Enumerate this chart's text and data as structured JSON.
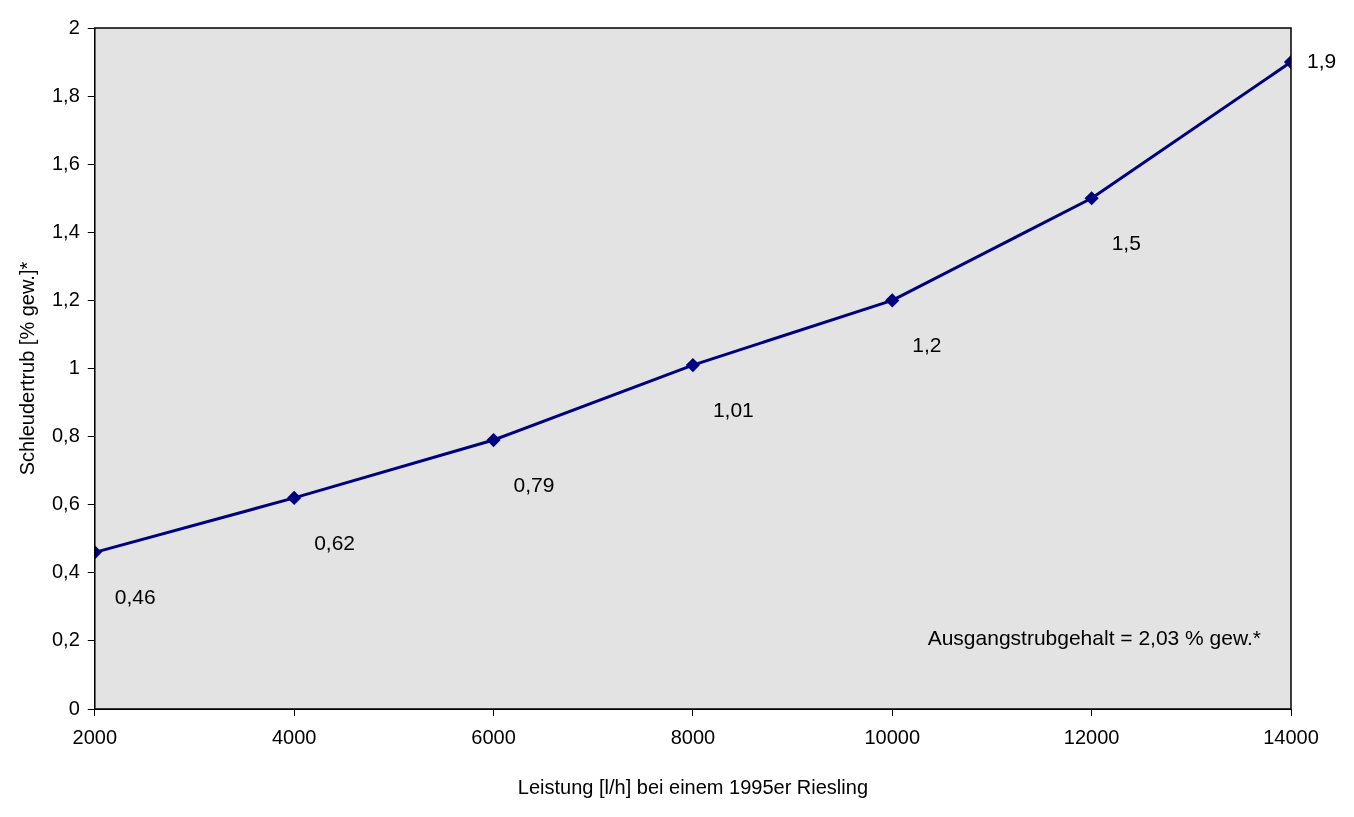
{
  "chart_data": {
    "type": "line",
    "xlabel": "Leistung [l/h] bei einem 1995er Riesling",
    "ylabel": "Schleudertrub [% gew.]*",
    "x": [
      2000,
      4000,
      6000,
      8000,
      10000,
      12000,
      14000
    ],
    "series": [
      {
        "color": "#000080",
        "values": [
          0.46,
          0.62,
          0.79,
          1.01,
          1.2,
          1.5,
          1.9
        ],
        "value_labels": [
          "0,46",
          "0,62",
          "0,79",
          "1,01",
          "1,2",
          "1,5",
          "1,9"
        ]
      }
    ],
    "xlim": [
      2000,
      14000
    ],
    "xticks": [
      2000,
      4000,
      6000,
      8000,
      10000,
      12000,
      14000
    ],
    "ylim": [
      0,
      2
    ],
    "yticks": [
      0,
      {
        "value": 0.2,
        "label": "0,2"
      },
      {
        "value": 0.4,
        "label": "0,4"
      },
      {
        "value": 0.6,
        "label": "0,6"
      },
      {
        "value": 0.8,
        "label": "0,8"
      },
      1,
      {
        "value": 1.2,
        "label": "1,2"
      },
      {
        "value": 1.4,
        "label": "1,4"
      },
      {
        "value": 1.6,
        "label": "1,6"
      },
      {
        "value": 1.8,
        "label": "1,8"
      },
      2
    ],
    "marker": "diamond",
    "line_style": "solid",
    "legend": false,
    "annotations": [
      "Ausgangstrubgehalt = 2,03 % gew.*"
    ]
  }
}
